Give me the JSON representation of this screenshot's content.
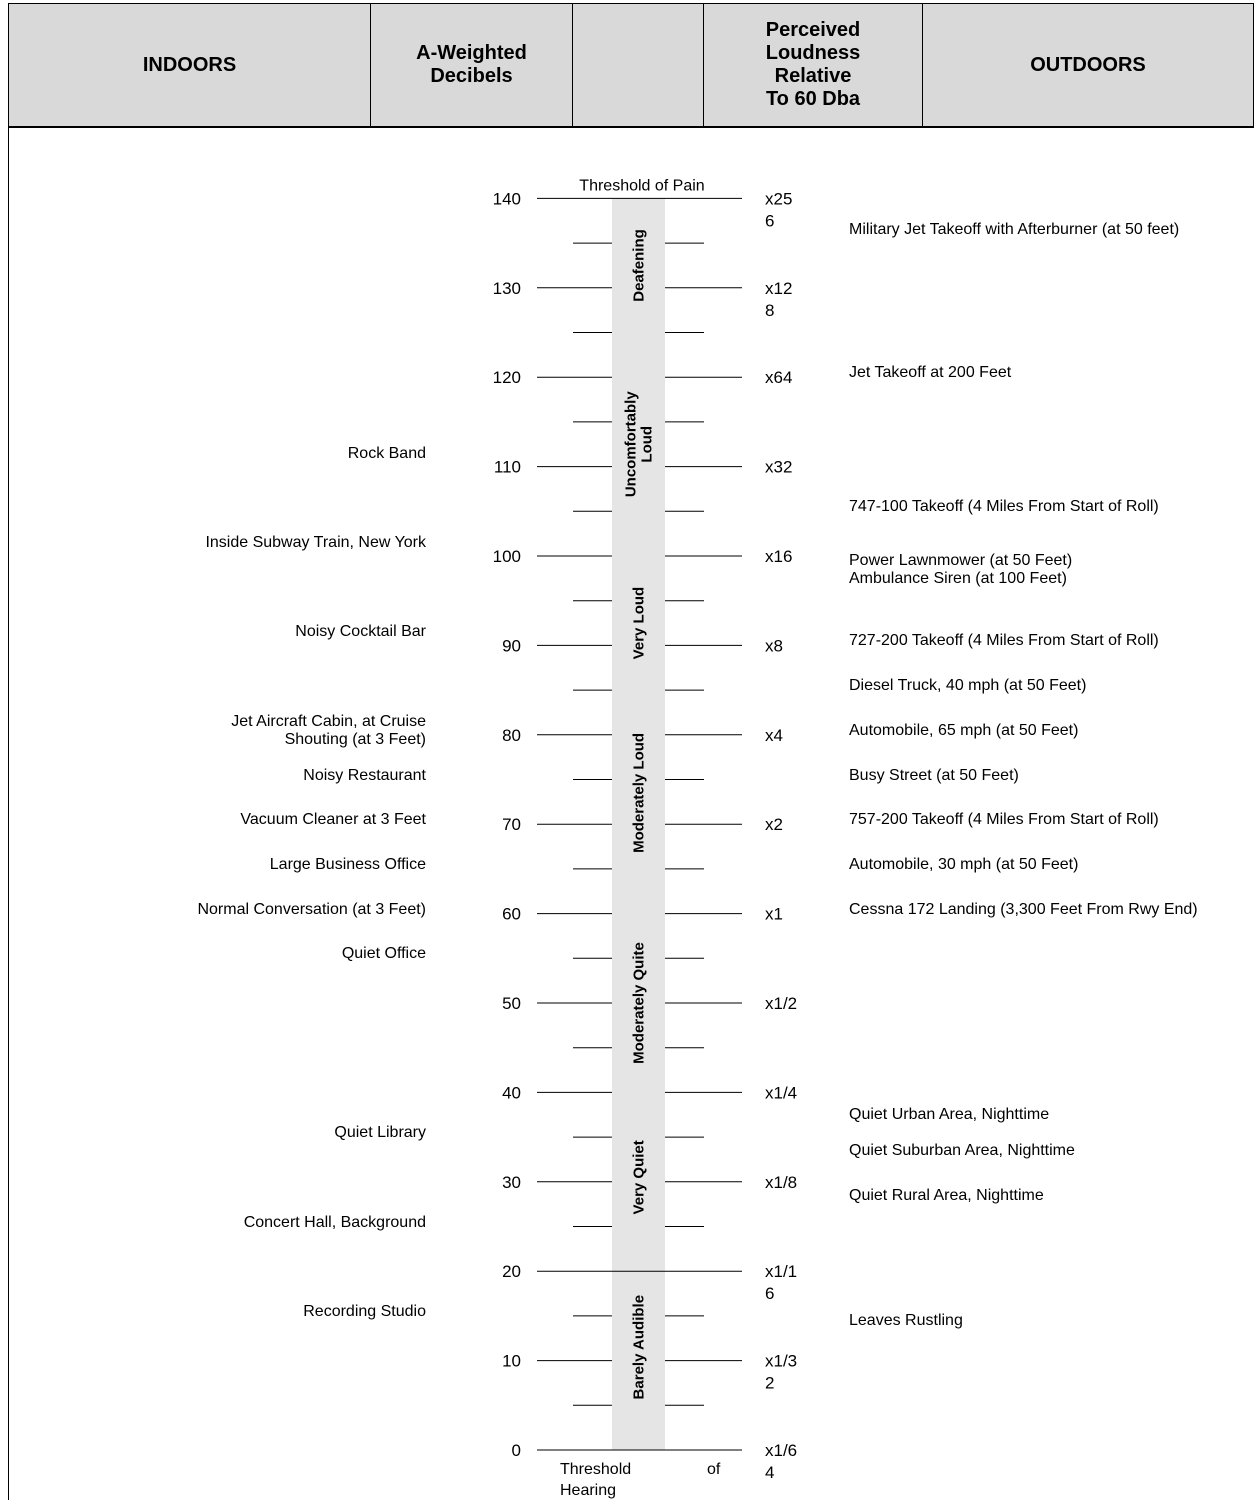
{
  "header": {
    "indoors": "INDOORS",
    "dba_l1": "A-Weighted",
    "dba_l2": "Decibels",
    "blank": "",
    "loud_l1": "Perceived",
    "loud_l2": "Loudness",
    "loud_l3": "Relative",
    "loud_l4": "To 60 Dba",
    "outdoors": "OUTDOORS"
  },
  "scale": {
    "top_label": "Threshold of Pain",
    "bottom_label_a": "Threshold",
    "bottom_label_b": "of",
    "bottom_label_c": "Hearing",
    "db_ticks": [
      "140",
      "130",
      "120",
      "110",
      "100",
      "90",
      "80",
      "70",
      "60",
      "50",
      "40",
      "30",
      "20",
      "10",
      "0"
    ],
    "multipliers": [
      [
        "x25",
        "6"
      ],
      [
        "x12",
        "8"
      ],
      [
        "x64"
      ],
      [
        "x32"
      ],
      [
        "x16"
      ],
      [
        "x8"
      ],
      [
        "x4"
      ],
      [
        "x2"
      ],
      [
        "x1"
      ],
      [
        "x1/2"
      ],
      [
        "x1/4"
      ],
      [
        "x1/8"
      ],
      [
        "x1/1",
        "6"
      ],
      [
        "x1/3",
        "2"
      ],
      [
        "x1/6",
        "4"
      ]
    ],
    "bands": [
      {
        "name": "Deafening",
        "top_db": 140,
        "bottom_db": 125
      },
      {
        "name": "Uncomfortably Loud",
        "top_db": 125,
        "bottom_db": 100
      },
      {
        "name": "Very Loud",
        "top_db": 100,
        "bottom_db": 85
      },
      {
        "name": "Moderately Loud",
        "top_db": 85,
        "bottom_db": 62
      },
      {
        "name": "Moderately Quite",
        "top_db": 62,
        "bottom_db": 38
      },
      {
        "name": "Very Quiet",
        "top_db": 38,
        "bottom_db": 23
      },
      {
        "name": "Barely Audible",
        "top_db": 23,
        "bottom_db": 0
      }
    ]
  },
  "indoors": [
    {
      "text": "Rock Band",
      "db": 111
    },
    {
      "text": "Inside Subway Train, New York",
      "db": 101
    },
    {
      "text": "Noisy Cocktail Bar",
      "db": 91
    },
    {
      "text": "Jet Aircraft Cabin, at Cruise",
      "db": 81
    },
    {
      "text": "Shouting (at 3 Feet)",
      "db": 79
    },
    {
      "text": "Noisy Restaurant",
      "db": 75
    },
    {
      "text": "Vacuum Cleaner at 3 Feet",
      "db": 70
    },
    {
      "text": "Large Business Office",
      "db": 65
    },
    {
      "text": "Normal Conversation (at 3 Feet)",
      "db": 60
    },
    {
      "text": "Quiet Office",
      "db": 55
    },
    {
      "text": "Quiet Library",
      "db": 35
    },
    {
      "text": "Concert Hall, Background",
      "db": 25
    },
    {
      "text": "Recording Studio",
      "db": 15
    }
  ],
  "outdoors": [
    {
      "text": "Military Jet Takeoff with Afterburner (at 50 feet)",
      "db": 136
    },
    {
      "text": "Jet Takeoff at 200 Feet",
      "db": 120
    },
    {
      "text": "747-100 Takeoff (4 Miles From Start of Roll)",
      "db": 105
    },
    {
      "text": "Power Lawnmower (at 50 Feet)",
      "db": 99
    },
    {
      "text": "Ambulance Siren (at 100 Feet)",
      "db": 97
    },
    {
      "text": "727-200 Takeoff (4 Miles From Start of Roll)",
      "db": 90
    },
    {
      "text": "Diesel Truck, 40 mph (at 50 Feet)",
      "db": 85
    },
    {
      "text": "Automobile, 65 mph (at 50 Feet)",
      "db": 80
    },
    {
      "text": "Busy Street (at 50 Feet)",
      "db": 75
    },
    {
      "text": "757-200 Takeoff (4 Miles From Start of Roll)",
      "db": 70
    },
    {
      "text": "Automobile, 30 mph (at 50 Feet)",
      "db": 65
    },
    {
      "text": "Cessna 172 Landing (3,300 Feet From Rwy End)",
      "db": 60,
      "wrap": true
    },
    {
      "text": "Quiet Urban Area, Nighttime",
      "db": 37
    },
    {
      "text": "Quiet Suburban Area, Nighttime",
      "db": 33
    },
    {
      "text": "Quiet Rural Area, Nighttime",
      "db": 28
    },
    {
      "text": "Leaves Rustling",
      "db": 14
    }
  ]
}
